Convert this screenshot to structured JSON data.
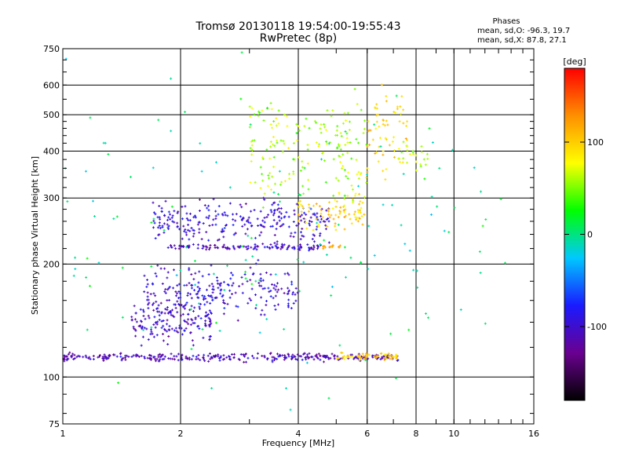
{
  "chart_data": {
    "type": "scatter",
    "title": "Tromsø 20130118 19:54:00-19:55:43",
    "subtitle": "RwPretec (8p)",
    "xlabel": "Frequency [MHz]",
    "ylabel": "Stationary phase Virtual Height [km]",
    "x_scale": "log",
    "y_scale": "log",
    "xlim": [
      1,
      16
    ],
    "ylim": [
      75,
      750
    ],
    "x_ticks": [
      "1",
      "2",
      "4",
      "6",
      "8",
      "10",
      "16"
    ],
    "x_tick_values": [
      1,
      2,
      4,
      6,
      8,
      10,
      16
    ],
    "y_ticks": [
      "75",
      "100",
      "200",
      "300",
      "400",
      "500",
      "600",
      "750"
    ],
    "y_tick_values": [
      75,
      100,
      200,
      300,
      400,
      500,
      600,
      750
    ],
    "grid": true,
    "legend": {
      "title": "Phases",
      "lines": [
        "mean, sd,O: -96.3, 19.7",
        "mean, sd,X:  87.8, 27.1"
      ],
      "placement": "top-right"
    },
    "colorbar": {
      "label": "[deg]",
      "ticks": [
        "100",
        "0",
        "-100"
      ],
      "tick_values": [
        100,
        0,
        -100
      ],
      "range": [
        -180,
        180
      ],
      "colormap": [
        "#000000",
        "#6a0090",
        "#1a1aff",
        "#00c8ff",
        "#00ff00",
        "#ffff00",
        "#ff9000",
        "#ff0000"
      ]
    },
    "series": [
      {
        "freq_range": [
          1.0,
          7.2
        ],
        "height": 113,
        "phase": -110,
        "spread": 0.012,
        "count": 320
      },
      {
        "freq_range": [
          5.0,
          7.2
        ],
        "height": 113,
        "phase": 100,
        "spread": 0.012,
        "count": 60
      },
      {
        "freq_range": [
          1.8,
          4.6
        ],
        "height": 222,
        "phase": -105,
        "spread": 0.008,
        "count": 120
      },
      {
        "freq_range": [
          4.6,
          5.2
        ],
        "height": 222,
        "phase": 120,
        "spread": 0.008,
        "count": 15
      },
      {
        "freq_range": [
          1.7,
          4.8
        ],
        "height": 260,
        "phase": -95,
        "spread": 0.06,
        "count": 260
      },
      {
        "freq_range": [
          4.0,
          5.9
        ],
        "height": 275,
        "phase": 100,
        "spread": 0.05,
        "count": 80
      },
      {
        "freq_range": [
          1.6,
          4.0
        ],
        "height": 170,
        "phase": -95,
        "spread": 0.07,
        "count": 220
      },
      {
        "freq_range": [
          1.5,
          2.4
        ],
        "height": 140,
        "phase": -100,
        "spread": 0.06,
        "count": 160
      },
      {
        "freq_range": [
          3.0,
          6.0
        ],
        "height": 400,
        "phase": 60,
        "spread": 0.16,
        "count": 180
      },
      {
        "freq_range": [
          6.0,
          7.6
        ],
        "height": 450,
        "phase": 100,
        "spread": 0.12,
        "count": 60
      },
      {
        "freq_range": [
          7.2,
          8.6
        ],
        "height": 390,
        "phase": 60,
        "spread": 0.04,
        "count": 25
      },
      {
        "freq_range": [
          1.0,
          14.0
        ],
        "height": 250,
        "phase": 0,
        "spread": 0.5,
        "count": 150
      }
    ]
  }
}
